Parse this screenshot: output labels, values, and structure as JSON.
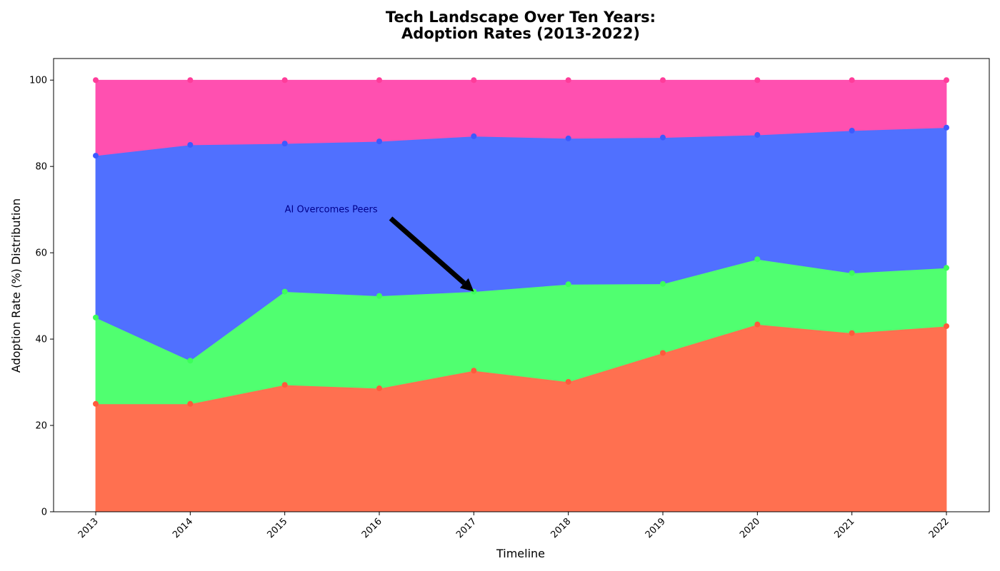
{
  "chart_data": {
    "type": "area",
    "stacked": true,
    "title_lines": [
      "Tech Landscape Over Ten Years:",
      "Adoption Rates (2013-2022)"
    ],
    "xlabel": "Timeline",
    "ylabel": "Adoption Rate (%) Distribution",
    "categories": [
      "2013",
      "2014",
      "2015",
      "2016",
      "2017",
      "2018",
      "2019",
      "2020",
      "2021",
      "2022"
    ],
    "ylim": [
      0,
      105
    ],
    "yticks": [
      0,
      20,
      40,
      60,
      80,
      100
    ],
    "grid": false,
    "legend": "none",
    "series": [
      {
        "fill_color": "#ff7050",
        "marker_color": "#ff5a3c",
        "cumulative_values": [
          25.0,
          25.0,
          29.4,
          28.6,
          32.7,
          30.1,
          36.8,
          43.4,
          41.4,
          43.0
        ]
      },
      {
        "fill_color": "#50ff70",
        "marker_color": "#3cff5a",
        "cumulative_values": [
          45.0,
          35.0,
          51.0,
          50.0,
          51.0,
          52.7,
          52.8,
          58.5,
          55.3,
          56.5
        ]
      },
      {
        "fill_color": "#5070ff",
        "marker_color": "#3c5aff",
        "cumulative_values": [
          82.5,
          85.0,
          85.3,
          85.8,
          87.0,
          86.5,
          86.7,
          87.3,
          88.3,
          89.0
        ]
      },
      {
        "fill_color": "#ff50b0",
        "marker_color": "#ff3c9a",
        "cumulative_values": [
          100,
          100,
          100,
          100,
          100,
          100,
          100,
          100,
          100,
          100
        ]
      }
    ],
    "annotation": {
      "text": "AI Overcomes Peers",
      "text_x": "2015",
      "text_y": 70,
      "arrow_target_x": "2017",
      "arrow_target_y": 51,
      "text_color": "#00008b",
      "arrow_color": "#000000"
    }
  }
}
